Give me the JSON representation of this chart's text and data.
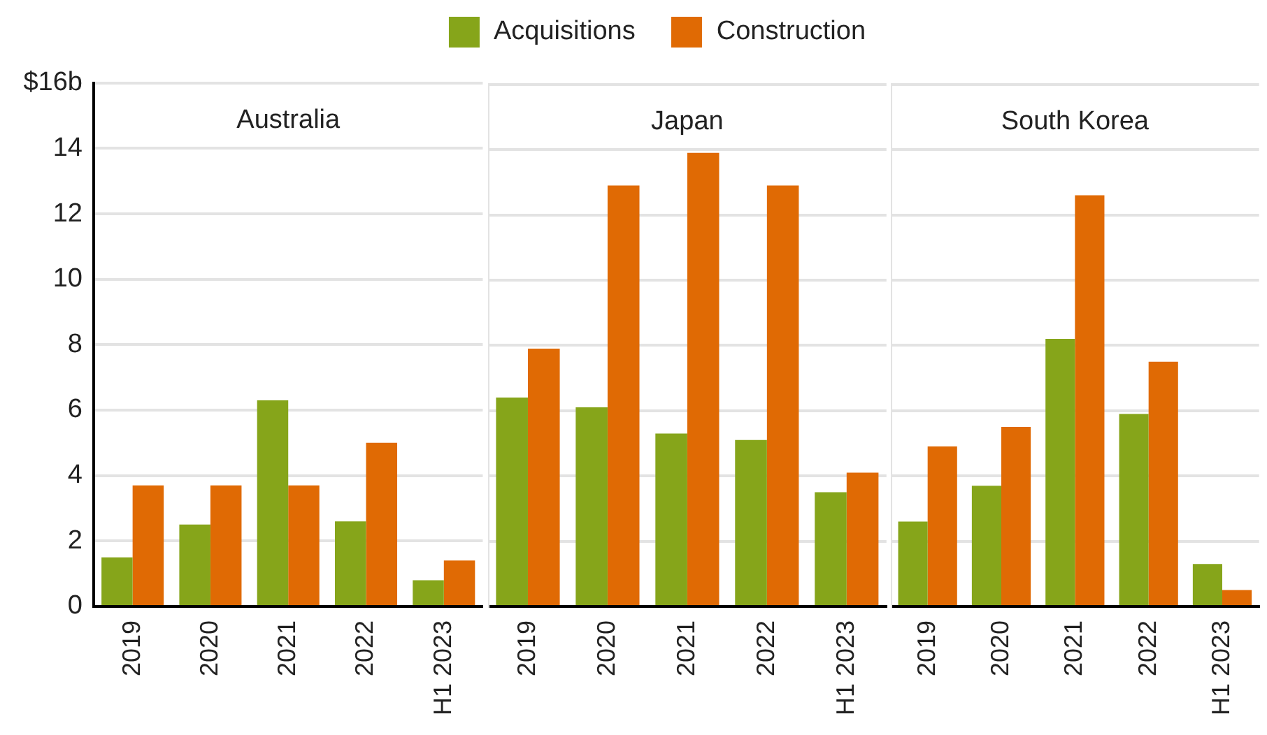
{
  "chart_data": [
    {
      "type": "bar",
      "title": "Australia",
      "categories": [
        "2019",
        "2020",
        "2021",
        "2022",
        "H1 2023"
      ],
      "series": [
        {
          "name": "Acquisitions",
          "color": "#86a51a",
          "values": [
            1.5,
            2.5,
            6.3,
            2.6,
            0.8
          ]
        },
        {
          "name": "Construction",
          "color": "#e06a04",
          "values": [
            3.7,
            3.7,
            3.7,
            5.0,
            1.4
          ]
        }
      ],
      "ylim": [
        0,
        16
      ],
      "yticks": [
        0,
        2,
        4,
        6,
        8,
        10,
        12,
        14,
        {
          "value": 16,
          "label": "$16b"
        }
      ],
      "grid": "y",
      "legend": "top"
    },
    {
      "type": "bar",
      "title": "Japan",
      "categories": [
        "2019",
        "2020",
        "2021",
        "2022",
        "H1 2023"
      ],
      "series": [
        {
          "color": "#86a51a",
          "values": [
            6.4,
            6.1,
            5.3,
            5.1,
            3.5
          ]
        },
        {
          "color": "#e06a04",
          "values": [
            7.9,
            12.9,
            13.9,
            12.9,
            4.1
          ]
        }
      ],
      "ylim": [
        0,
        16
      ],
      "yticks": [
        0,
        2,
        4,
        6,
        8,
        10,
        12,
        14,
        16
      ],
      "grid": "y",
      "tick_labels": "x"
    },
    {
      "type": "bar",
      "title": "South Korea",
      "categories": [
        "2019",
        "2020",
        "2021",
        "2022",
        "H1 2023"
      ],
      "series": [
        {
          "color": "#86a51a",
          "values": [
            2.6,
            3.7,
            8.2,
            5.9,
            1.3
          ]
        },
        {
          "color": "#e06a04",
          "values": [
            4.9,
            5.5,
            12.6,
            7.5,
            0.5
          ]
        }
      ],
      "ylim": [
        0,
        16
      ],
      "yticks": [
        0,
        2,
        4,
        6,
        8,
        10,
        12,
        14,
        16
      ],
      "grid": "y",
      "tick_labels": "x"
    }
  ]
}
